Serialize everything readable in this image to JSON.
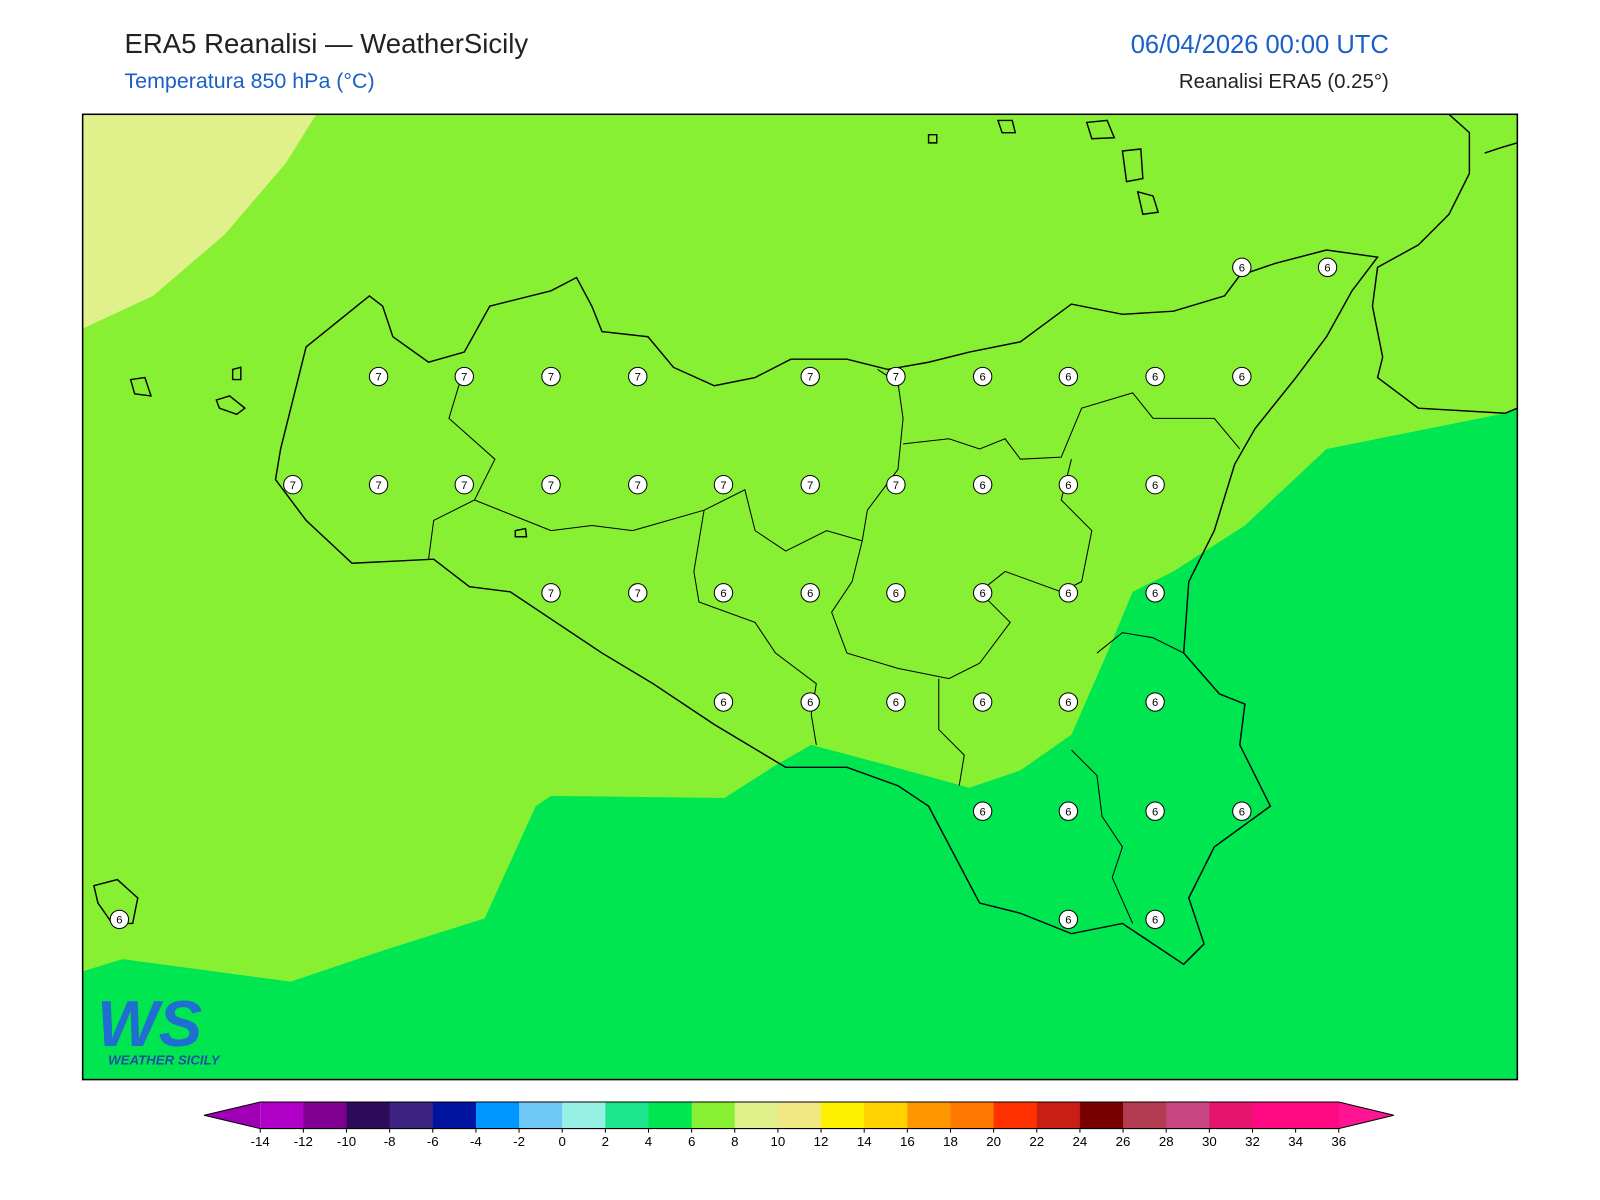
{
  "header": {
    "title": "ERA5 Reanalisi — WeatherSicily",
    "subtitle": "Temperatura 850 hPa (°C)",
    "date": "06/04/2026 00:00 UTC",
    "source": "Reanalisi ERA5 (0.25°)"
  },
  "map": {
    "background": "#88f032",
    "warm_area": "#e0f08a",
    "cool_area": "#00e650"
  },
  "stations": [
    6,
    6,
    7,
    7,
    7,
    7,
    7,
    7,
    6,
    6,
    6,
    6,
    7,
    7,
    7,
    7,
    7,
    7,
    7,
    7,
    6,
    6,
    6,
    7,
    7,
    6,
    6,
    6,
    6,
    6,
    6,
    6,
    6,
    6,
    6,
    6,
    6,
    6,
    6,
    6,
    6,
    6,
    6,
    6
  ],
  "colorbar": {
    "ticks": [
      -14,
      -12,
      -10,
      -8,
      -6,
      -4,
      -2,
      0,
      2,
      4,
      6,
      8,
      10,
      12,
      14,
      16,
      18,
      20,
      22,
      24,
      26,
      28,
      30,
      32,
      34,
      36
    ],
    "colors": [
      "#b000c8",
      "#7f0090",
      "#2e0a5a",
      "#3c2382",
      "#0014a0",
      "#0096ff",
      "#6ec8f5",
      "#96f0e6",
      "#1ee68c",
      "#00e650",
      "#88f032",
      "#e0f08a",
      "#f0e682",
      "#fff000",
      "#ffd200",
      "#ff9600",
      "#ff7800",
      "#ff3200",
      "#c81e14",
      "#780000",
      "#b43c50",
      "#c84682",
      "#e6146e",
      "#ff0a82",
      "#ff0a82"
    ],
    "under": "#a000b4",
    "over": "#ff1493"
  },
  "logo": {
    "mark": "WS",
    "caption": "WEATHER SICILY"
  }
}
